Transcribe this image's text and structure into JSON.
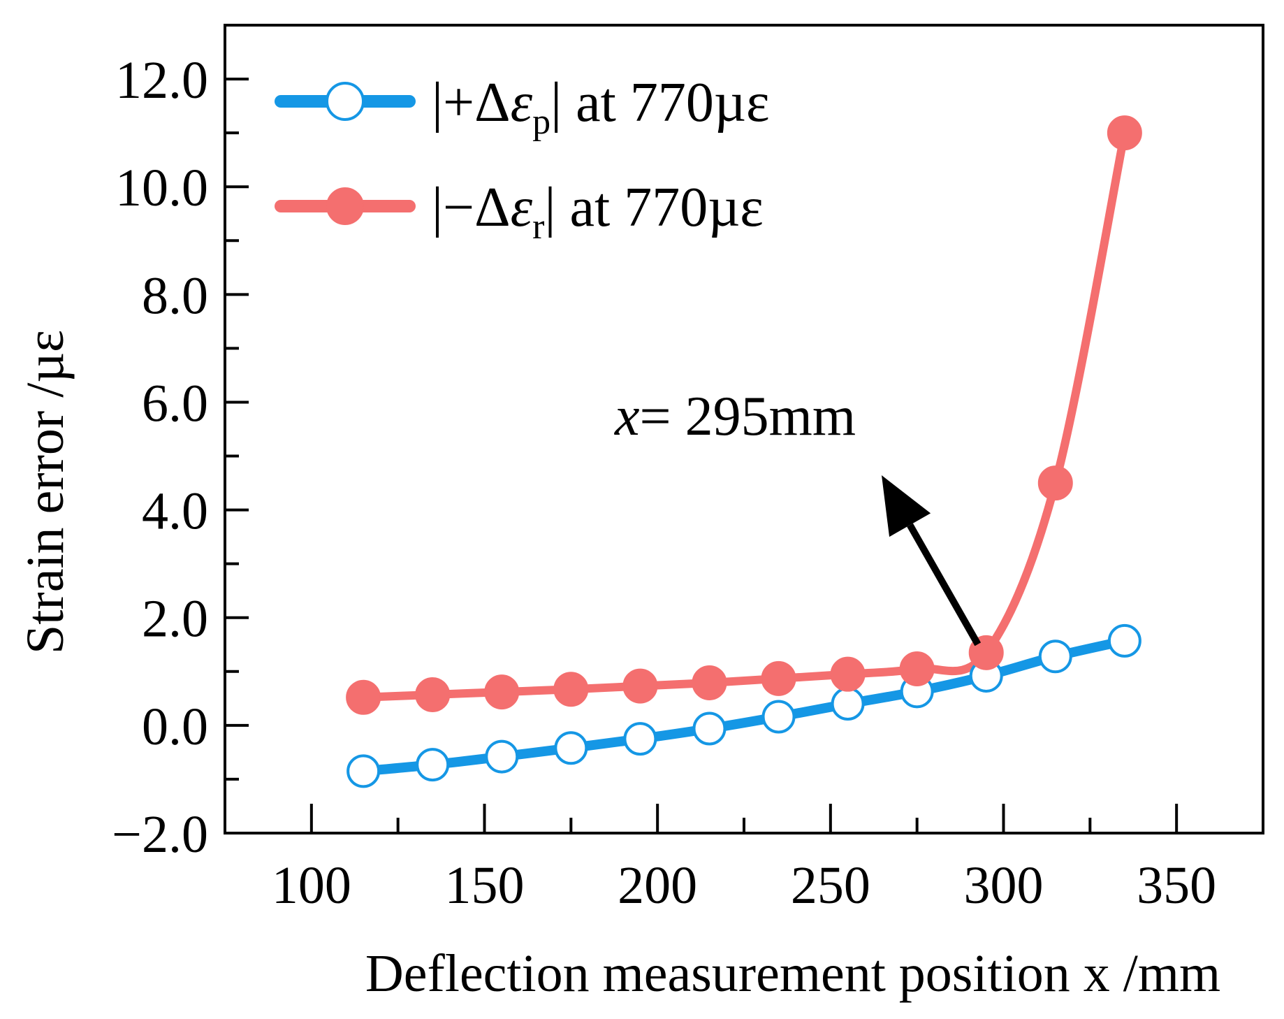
{
  "chart_data": {
    "type": "line",
    "title": "",
    "xlabel": "Deflection measurement position x /mm",
    "ylabel": "Strain error /µε",
    "xlim": [
      75,
      375
    ],
    "ylim": [
      -2.0,
      13.0
    ],
    "x_ticks": [
      100,
      150,
      200,
      250,
      300,
      350
    ],
    "x_tick_labels": [
      "100",
      "150",
      "200",
      "250",
      "300",
      "350"
    ],
    "y_ticks": [
      -2.0,
      0.0,
      2.0,
      4.0,
      6.0,
      8.0,
      10.0,
      12.0
    ],
    "y_tick_labels": [
      "−2.0",
      "0.0",
      "2.0",
      "4.0",
      "6.0",
      "8.0",
      "10.0",
      "12.0"
    ],
    "x": [
      115,
      135,
      155,
      175,
      195,
      215,
      235,
      255,
      275,
      295,
      315,
      335
    ],
    "series": [
      {
        "name": "|+Δεp| at 770µε",
        "color": "#1597e5",
        "marker": "open-circle",
        "values": [
          -0.85,
          -0.73,
          -0.58,
          -0.42,
          -0.25,
          -0.06,
          0.16,
          0.4,
          0.63,
          0.92,
          1.28,
          1.57
        ]
      },
      {
        "name": "|−Δεr| at 770µε",
        "color": "#f46f6f",
        "marker": "filled-circle",
        "values": [
          0.52,
          0.57,
          0.62,
          0.67,
          0.73,
          0.79,
          0.87,
          0.95,
          1.05,
          1.35,
          4.5,
          11.0
        ]
      }
    ],
    "legend": {
      "position": "top-left",
      "entries": [
        {
          "prefix": "|+Δ",
          "sym": "ε",
          "sub": "p",
          "suffix": "| at 770µε"
        },
        {
          "prefix": "|−Δ",
          "sym": "ε",
          "sub": "r",
          "suffix": "| at 770µε"
        }
      ]
    },
    "annotation": {
      "var": "x",
      "text": "= 295mm",
      "target_x": 295,
      "target_y": 1.35
    }
  }
}
